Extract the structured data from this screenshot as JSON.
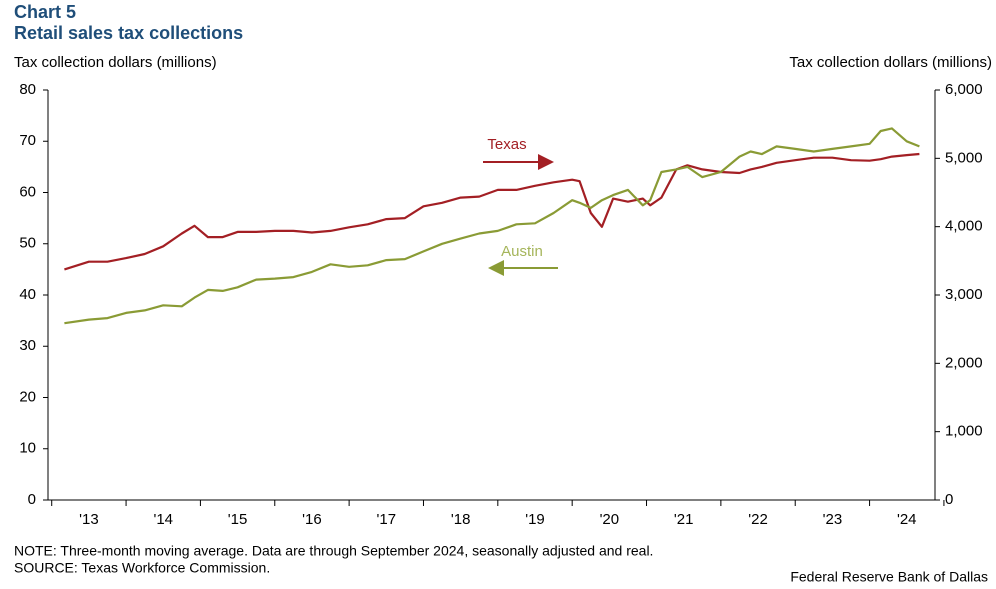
{
  "chart_data": {
    "type": "line",
    "title": "Chart 5",
    "subtitle": "Retail sales tax collections",
    "ylabel": "Tax collection dollars (millions)",
    "y2label": "Tax collection dollars (millions)",
    "note": "NOTE: Three-month moving average. Data are through September 2024, seasonally adjusted and real.",
    "source": "SOURCE: Texas Workforce Commission.",
    "credit": "Federal Reserve Bank of Dallas",
    "x": [
      2013.17,
      2013.5,
      2013.75,
      2014.0,
      2014.25,
      2014.5,
      2014.75,
      2014.92,
      2015.1,
      2015.3,
      2015.5,
      2015.75,
      2016.0,
      2016.25,
      2016.5,
      2016.75,
      2017.0,
      2017.25,
      2017.5,
      2017.75,
      2018.0,
      2018.25,
      2018.5,
      2018.75,
      2019.0,
      2019.25,
      2019.5,
      2019.75,
      2020.0,
      2020.1,
      2020.25,
      2020.4,
      2020.55,
      2020.75,
      2020.95,
      2021.05,
      2021.2,
      2021.4,
      2021.55,
      2021.75,
      2022.0,
      2022.25,
      2022.4,
      2022.55,
      2022.75,
      2023.0,
      2023.25,
      2023.5,
      2023.75,
      2024.0,
      2024.15,
      2024.3,
      2024.5,
      2024.67
    ],
    "series": [
      {
        "name": "Texas",
        "color": "#a31f24",
        "axis": "y2",
        "values": [
          3375,
          3488,
          3488,
          3540,
          3600,
          3713,
          3900,
          4013,
          3848,
          3848,
          3923,
          3923,
          3938,
          3938,
          3915,
          3938,
          3990,
          4035,
          4110,
          4125,
          4298,
          4350,
          4425,
          4440,
          4538,
          4538,
          4598,
          4650,
          4688,
          4665,
          4200,
          3998,
          4410,
          4365,
          4410,
          4313,
          4425,
          4838,
          4898,
          4838,
          4800,
          4785,
          4838,
          4875,
          4935,
          4973,
          5010,
          5010,
          4973,
          4965,
          4988,
          5025,
          5048,
          5063
        ]
      },
      {
        "name": "Austin",
        "color": "#8a9b35",
        "axis": "y",
        "values": [
          34.5,
          35.2,
          35.5,
          36.5,
          37,
          38,
          37.8,
          39.5,
          41,
          40.8,
          41.5,
          43,
          43.2,
          43.5,
          44.5,
          46,
          45.5,
          45.8,
          46.8,
          47,
          48.5,
          50,
          51,
          52,
          52.5,
          53.8,
          54,
          56,
          58.5,
          58,
          57,
          58.5,
          59.5,
          60.5,
          57.5,
          58.5,
          64,
          64.5,
          65,
          63,
          64,
          67,
          68,
          67.5,
          69,
          68.5,
          68,
          68.5,
          69,
          69.5,
          72,
          72.5,
          70,
          69
        ]
      }
    ],
    "xlim": [
      2012.95,
      2024.88
    ],
    "xticks": [
      {
        "value": 2013.5,
        "label": "'13"
      },
      {
        "value": 2014.5,
        "label": "'14"
      },
      {
        "value": 2015.5,
        "label": "'15"
      },
      {
        "value": 2016.5,
        "label": "'16"
      },
      {
        "value": 2017.5,
        "label": "'17"
      },
      {
        "value": 2018.5,
        "label": "'18"
      },
      {
        "value": 2019.5,
        "label": "'19"
      },
      {
        "value": 2020.5,
        "label": "'20"
      },
      {
        "value": 2021.5,
        "label": "'21"
      },
      {
        "value": 2022.5,
        "label": "'22"
      },
      {
        "value": 2023.5,
        "label": "'23"
      },
      {
        "value": 2024.5,
        "label": "'24"
      }
    ],
    "ylim": [
      0,
      80
    ],
    "yticks": [
      0,
      10,
      20,
      30,
      40,
      50,
      60,
      70,
      80
    ],
    "y2lim": [
      0,
      6000
    ],
    "y2ticks": [
      0,
      {
        "value": 1000,
        "label": "1,000"
      },
      {
        "value": 2000,
        "label": "2,000"
      },
      {
        "value": 3000,
        "label": "3,000"
      },
      {
        "value": 4000,
        "label": "4,000"
      },
      {
        "value": 5000,
        "label": "5,000"
      },
      {
        "value": 6000,
        "label": "6,000"
      }
    ],
    "grid": false
  }
}
